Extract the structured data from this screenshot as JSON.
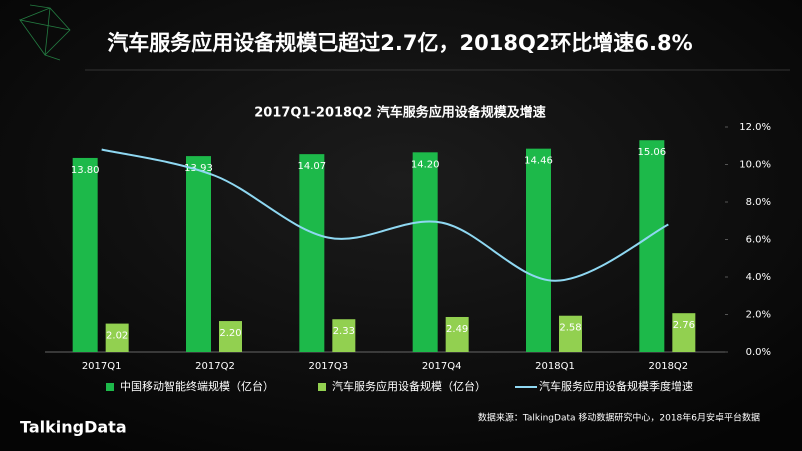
{
  "header": {
    "title": "汽车服务应用设备规模已超过2.7亿，2018Q2环比增速6.8%"
  },
  "chart_data": {
    "type": "bar-line",
    "title": "2017Q1-2018Q2 汽车服务应用设备规模及增速",
    "categories": [
      "2017Q1",
      "2017Q2",
      "2017Q3",
      "2017Q4",
      "2018Q1",
      "2018Q2"
    ],
    "series": [
      {
        "name": "中国移动智能终端规模（亿台）",
        "color": "#1db94a",
        "type": "bar",
        "values": [
          13.8,
          13.93,
          14.07,
          14.2,
          14.46,
          15.06
        ],
        "value_labels": [
          "13.80",
          "13.93",
          "14.07",
          "14.20",
          "14.46",
          "15.06"
        ]
      },
      {
        "name": "汽车服务应用设备规模（亿台）",
        "color": "#92d050",
        "type": "bar",
        "values": [
          2.02,
          2.2,
          2.33,
          2.49,
          2.58,
          2.76
        ],
        "value_labels": [
          "2.02",
          "2.20",
          "2.33",
          "2.49",
          "2.58",
          "2.76"
        ]
      },
      {
        "name": "汽车服务应用设备规模季度增速",
        "color": "#8fd8f2",
        "type": "line",
        "axis": "y2",
        "values": [
          10.8,
          9.4,
          6.1,
          6.9,
          3.8,
          6.8
        ]
      }
    ],
    "ylim": [
      0,
      16
    ],
    "y2lim": [
      0,
      12
    ],
    "y2ticks": [
      {
        "value": 0,
        "label": "0.0%"
      },
      {
        "value": 2,
        "label": "2.0%"
      },
      {
        "value": 4,
        "label": "4.0%"
      },
      {
        "value": 6,
        "label": "6.0%"
      },
      {
        "value": 8,
        "label": "8.0%"
      },
      {
        "value": 10,
        "label": "10.0%"
      },
      {
        "value": 12,
        "label": "12.0%"
      }
    ],
    "legend": "bottom",
    "source": "数据来源：TalkingData 移动数据研究中心，2018年6月安卓平台数据"
  },
  "footer": {
    "logo": "TalkingData"
  }
}
